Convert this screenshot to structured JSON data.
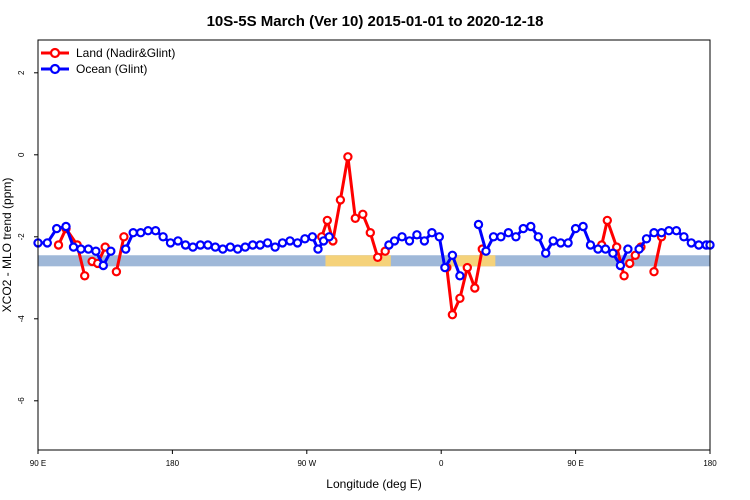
{
  "chart_data": {
    "type": "line",
    "title": "10S-5S March (Ver 10)   2015-01-01 to 2020-12-18",
    "xlabel": "Longitude (deg E)",
    "ylabel": "XCO2 - MLO trend (ppm)",
    "x_tick_labels": [
      "90 E",
      "180",
      "90 W",
      "0",
      "90 E",
      "180"
    ],
    "y_tick_labels": [
      "2",
      "0",
      "-2",
      "-4",
      "-6"
    ],
    "y_ticks": [
      2,
      0,
      -2,
      -4,
      -6
    ],
    "ylim": [
      -7.2,
      2.8
    ],
    "xlim": [
      0,
      360
    ],
    "grid": false,
    "legend_position": "top-left",
    "background_band": {
      "y_range": [
        -2.72,
        -2.45
      ],
      "ocean_color": "#9fb8d8",
      "land_color": "#f5d27a",
      "land_ranges": [
        [
          154,
          189
        ],
        [
          221,
          245
        ]
      ]
    },
    "series": [
      {
        "name": "Land (Nadir&Glint)",
        "color": "#ff0000",
        "segments": [
          [
            [
              11,
              -2.2
            ],
            [
              15,
              -1.8
            ],
            [
              21,
              -2.2
            ],
            [
              25,
              -2.95
            ]
          ],
          [
            [
              29,
              -2.6
            ],
            [
              32,
              -2.65
            ],
            [
              36,
              -2.25
            ]
          ],
          [
            [
              42,
              -2.85
            ],
            [
              46,
              -2.0
            ]
          ],
          [
            [
              152,
              -2.0
            ],
            [
              155,
              -1.6
            ],
            [
              158,
              -2.1
            ],
            [
              162,
              -1.1
            ],
            [
              166,
              -0.05
            ],
            [
              170,
              -1.55
            ],
            [
              174,
              -1.45
            ],
            [
              178,
              -1.9
            ],
            [
              182,
              -2.5
            ],
            [
              186,
              -2.35
            ]
          ],
          [
            [
              219,
              -2.75
            ],
            [
              222,
              -3.9
            ],
            [
              226,
              -3.5
            ],
            [
              230,
              -2.75
            ],
            [
              234,
              -3.25
            ],
            [
              238,
              -2.3
            ]
          ],
          [
            [
              302,
              -2.2
            ],
            [
              305,
              -1.6
            ],
            [
              310,
              -2.25
            ],
            [
              314,
              -2.95
            ]
          ],
          [
            [
              317,
              -2.65
            ],
            [
              320,
              -2.45
            ],
            [
              323,
              -2.25
            ]
          ],
          [
            [
              330,
              -2.85
            ],
            [
              334,
              -2.0
            ]
          ]
        ]
      },
      {
        "name": "Ocean (Glint)",
        "color": "#0000ff",
        "segments": [
          [
            [
              0,
              -2.15
            ],
            [
              5,
              -2.15
            ],
            [
              10,
              -1.8
            ],
            [
              15,
              -1.75
            ],
            [
              19,
              -2.25
            ],
            [
              23,
              -2.3
            ],
            [
              27,
              -2.3
            ],
            [
              31,
              -2.35
            ],
            [
              35,
              -2.7
            ],
            [
              39,
              -2.35
            ]
          ],
          [
            [
              47,
              -2.3
            ],
            [
              51,
              -1.9
            ],
            [
              55,
              -1.9
            ],
            [
              59,
              -1.85
            ],
            [
              63,
              -1.85
            ],
            [
              67,
              -2.0
            ],
            [
              71,
              -2.15
            ],
            [
              75,
              -2.1
            ],
            [
              79,
              -2.2
            ],
            [
              83,
              -2.25
            ],
            [
              87,
              -2.2
            ],
            [
              91,
              -2.2
            ],
            [
              95,
              -2.25
            ],
            [
              99,
              -2.3
            ],
            [
              103,
              -2.25
            ],
            [
              107,
              -2.3
            ],
            [
              111,
              -2.25
            ],
            [
              115,
              -2.2
            ],
            [
              119,
              -2.2
            ],
            [
              123,
              -2.15
            ],
            [
              127,
              -2.25
            ],
            [
              131,
              -2.15
            ],
            [
              135,
              -2.1
            ],
            [
              139,
              -2.15
            ],
            [
              143,
              -2.05
            ],
            [
              147,
              -2.0
            ],
            [
              150,
              -2.3
            ],
            [
              153,
              -2.1
            ],
            [
              156,
              -2.0
            ]
          ],
          [
            [
              188,
              -2.2
            ],
            [
              191,
              -2.1
            ],
            [
              195,
              -2.0
            ],
            [
              199,
              -2.1
            ],
            [
              203,
              -1.95
            ],
            [
              207,
              -2.1
            ],
            [
              211,
              -1.9
            ],
            [
              215,
              -2.0
            ],
            [
              218,
              -2.75
            ],
            [
              222,
              -2.45
            ],
            [
              226,
              -2.95
            ]
          ],
          [
            [
              236,
              -1.7
            ],
            [
              240,
              -2.35
            ],
            [
              244,
              -2.0
            ],
            [
              248,
              -2.0
            ],
            [
              252,
              -1.9
            ],
            [
              256,
              -2.0
            ],
            [
              260,
              -1.8
            ],
            [
              264,
              -1.75
            ],
            [
              268,
              -2.0
            ],
            [
              272,
              -2.4
            ],
            [
              276,
              -2.1
            ],
            [
              280,
              -2.15
            ],
            [
              284,
              -2.15
            ],
            [
              288,
              -1.8
            ],
            [
              292,
              -1.75
            ],
            [
              296,
              -2.2
            ],
            [
              300,
              -2.3
            ],
            [
              304,
              -2.3
            ],
            [
              308,
              -2.4
            ],
            [
              312,
              -2.7
            ],
            [
              316,
              -2.3
            ]
          ],
          [
            [
              322,
              -2.3
            ],
            [
              326,
              -2.05
            ],
            [
              330,
              -1.9
            ],
            [
              334,
              -1.9
            ],
            [
              338,
              -1.85
            ],
            [
              342,
              -1.85
            ],
            [
              346,
              -2.0
            ],
            [
              350,
              -2.15
            ],
            [
              354,
              -2.2
            ],
            [
              358,
              -2.2
            ],
            [
              360,
              -2.2
            ]
          ]
        ]
      }
    ]
  }
}
